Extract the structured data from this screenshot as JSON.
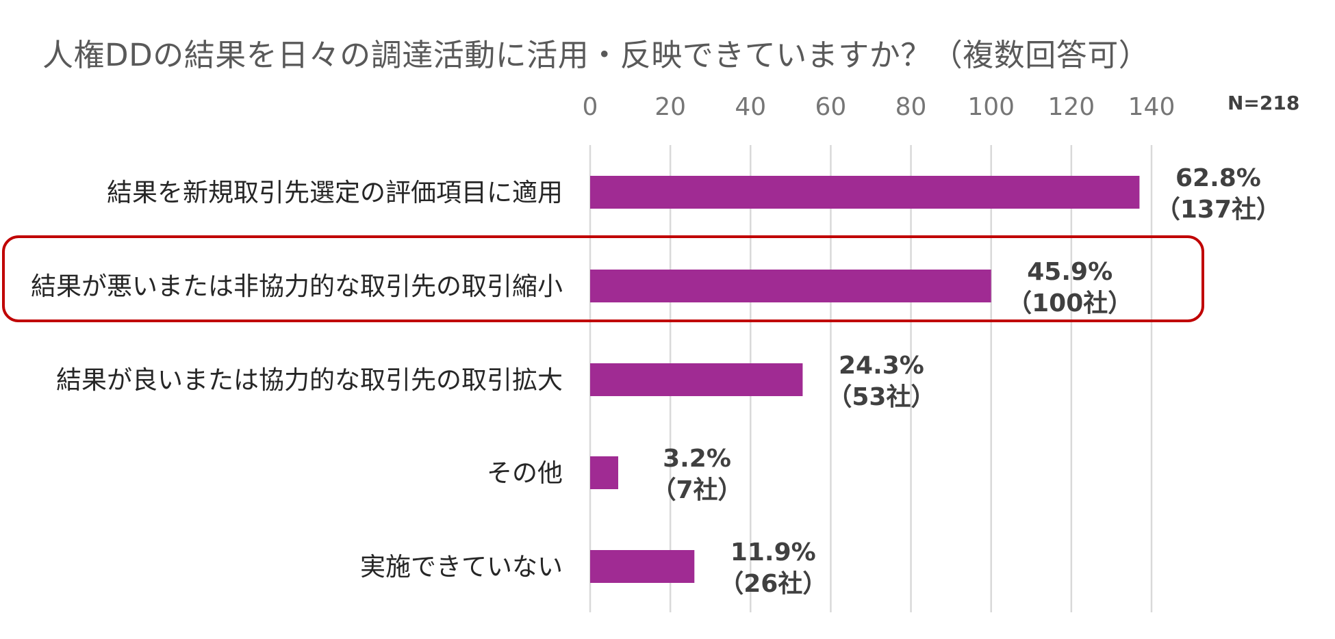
{
  "title": "人権DDの結果を日々の調達活動に活用・反映できていますか？（複数回答可）",
  "note": "N=218",
  "chart_data": {
    "type": "bar",
    "orientation": "horizontal",
    "categories": [
      "結果を新規取引先選定の評価項目に適用",
      "結果が悪いまたは非協力的な取引先の取引縮小",
      "結果が良いまたは協力的な取引先の取引拡大",
      "その他",
      "実施できていない"
    ],
    "values": [
      137,
      100,
      53,
      7,
      26
    ],
    "percent_labels": [
      "62.8%",
      "45.9%",
      "24.3%",
      "3.2%",
      "11.9%"
    ],
    "count_labels": [
      "（137社）",
      "（100社）",
      "（53社）",
      "（7社）",
      "（26社）"
    ],
    "xlim": [
      0,
      140
    ],
    "xticks": [
      0,
      20,
      40,
      60,
      80,
      100,
      120,
      140
    ],
    "tick_labels": [
      "0",
      "20",
      "40",
      "60",
      "80",
      "100",
      "120",
      "140"
    ],
    "grid": true,
    "axis_position": "top",
    "bar_color": "#a02b93",
    "highlight_index": 1,
    "highlight_color": "#c00000"
  }
}
